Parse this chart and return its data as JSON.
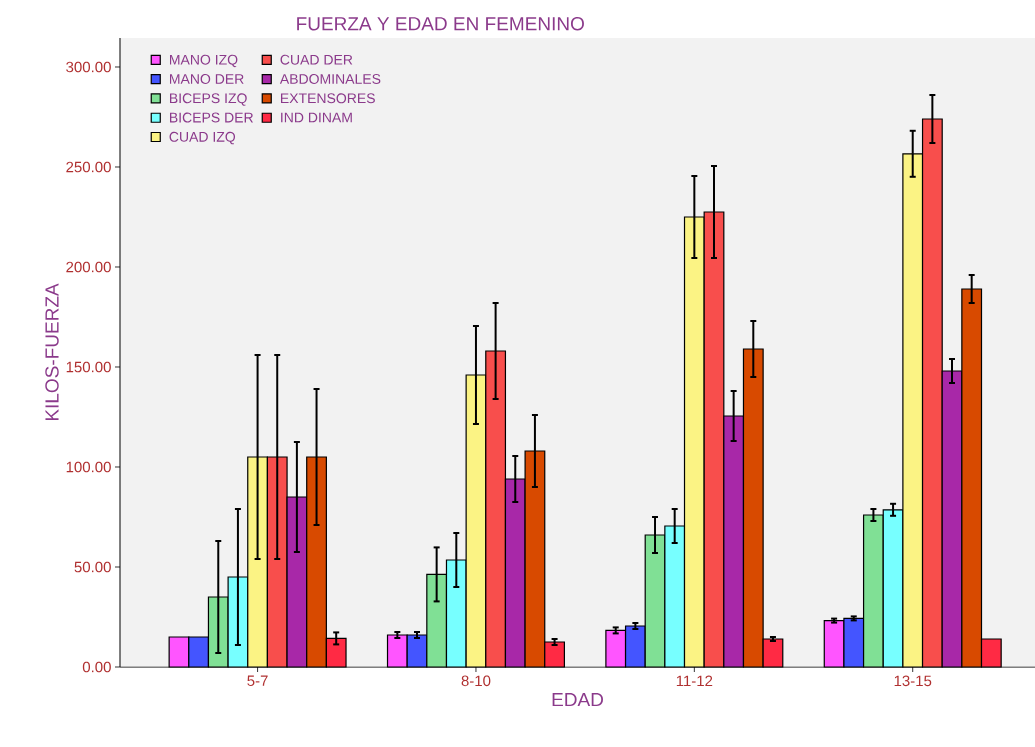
{
  "chart_data": {
    "type": "bar",
    "title": "FUERZA Y EDAD  EN FEMENINO",
    "xlabel": "EDAD",
    "ylabel": "KILOS-FUERZA",
    "categories": [
      "5-7",
      "8-10",
      "11-12",
      "13-15"
    ],
    "series": [
      {
        "name": "MANO IZQ",
        "color": "#ff55ff",
        "values": [
          15,
          16,
          18.3,
          23.2
        ],
        "errors": [
          null,
          1.5,
          1.5,
          1
        ]
      },
      {
        "name": "MANO DER",
        "color": "#4455ff",
        "values": [
          15,
          16,
          20.5,
          24.3
        ],
        "errors": [
          null,
          1.5,
          1.5,
          1
        ]
      },
      {
        "name": "BICEPS IZQ",
        "color": "#80e095",
        "values": [
          35,
          46.3,
          66,
          76
        ],
        "errors": [
          28,
          13.5,
          9,
          3
        ]
      },
      {
        "name": "BICEPS DER",
        "color": "#77ffff",
        "values": [
          45,
          53.5,
          70.5,
          78.6
        ],
        "errors": [
          34,
          13.5,
          8.5,
          3
        ]
      },
      {
        "name": "CUAD IZQ",
        "color": "#fbf384",
        "values": [
          105,
          146,
          225,
          256.6
        ],
        "errors": [
          51,
          24.5,
          20.5,
          11.5
        ]
      },
      {
        "name": "CUAD DER",
        "color": "#f84e4c",
        "values": [
          105,
          158,
          227.5,
          274
        ],
        "errors": [
          51,
          24,
          23,
          12
        ]
      },
      {
        "name": "ABDOMINALES",
        "color": "#a828a8",
        "values": [
          85,
          94,
          125.5,
          148
        ],
        "errors": [
          27.5,
          11.5,
          12.5,
          6
        ]
      },
      {
        "name": "EXTENSORES",
        "color": "#d84a00",
        "values": [
          105,
          108,
          159,
          189
        ],
        "errors": [
          34,
          18,
          14,
          7
        ]
      },
      {
        "name": "IND DINAM",
        "color": "#ff2a44",
        "values": [
          14.3,
          12.5,
          14,
          14
        ],
        "errors": [
          3,
          1.5,
          1,
          null
        ]
      }
    ],
    "ylim": [
      0,
      314.5
    ],
    "yticks": [
      {
        "value": 0,
        "label": "0.00"
      },
      {
        "value": 50,
        "label": "50.00"
      },
      {
        "value": 100,
        "label": "100.00"
      },
      {
        "value": 150,
        "label": "150.00"
      },
      {
        "value": 200,
        "label": "200.00"
      },
      {
        "value": 250,
        "label": "250.00"
      },
      {
        "value": 300,
        "label": "300.00"
      }
    ],
    "legend": "top left",
    "grid": false
  }
}
